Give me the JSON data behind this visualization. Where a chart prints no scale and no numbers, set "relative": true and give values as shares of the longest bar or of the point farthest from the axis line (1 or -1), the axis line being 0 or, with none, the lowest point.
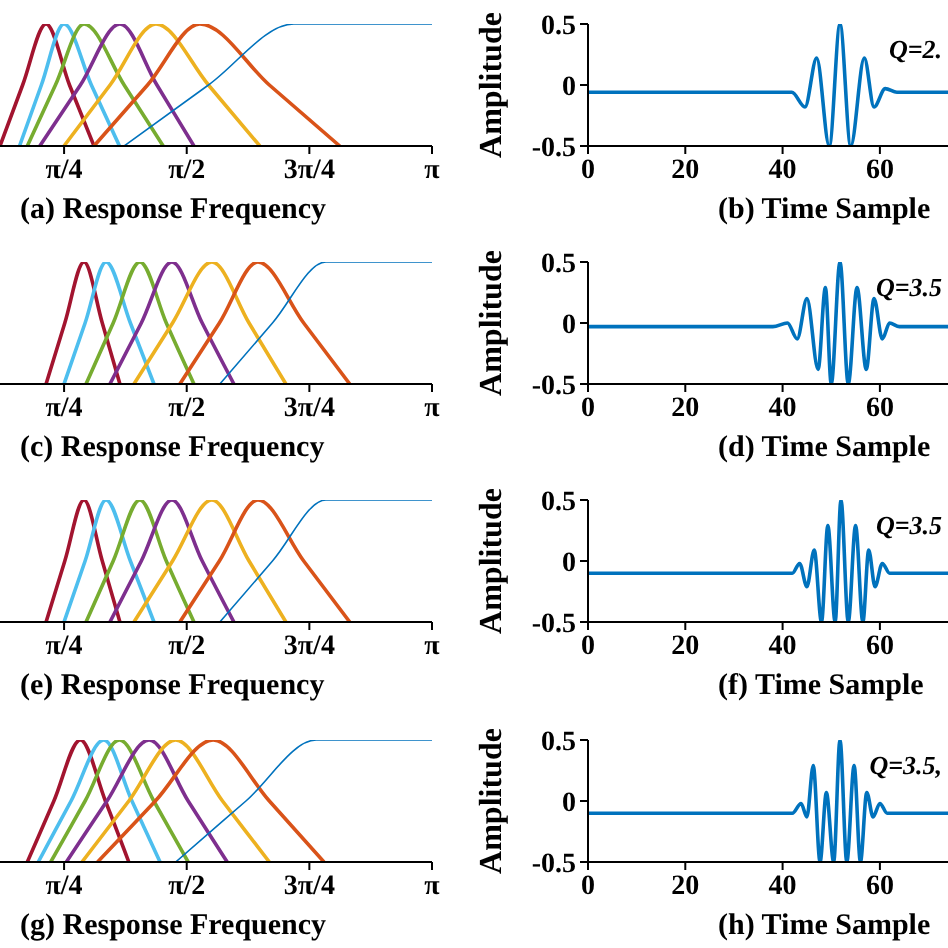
{
  "chart_data": [
    {
      "type": "line",
      "relative": true,
      "xlabel": "(a) Response Frequency",
      "xlim": [
        0.375,
        3.1416
      ],
      "xticks": [
        {
          "value": 0.7854,
          "label": "π/4"
        },
        {
          "value": 1.5708,
          "label": "π/2"
        },
        {
          "value": 2.3562,
          "label": "3π/4"
        },
        {
          "value": 3.1416,
          "label": "π"
        }
      ],
      "series": [
        {
          "color": "#a2142f",
          "x": [
            0.375,
            0.52,
            0.67,
            0.82,
            0.977
          ],
          "values": [
            0,
            0.5,
            1,
            0.5,
            0
          ]
        },
        {
          "color": "#4dbeee",
          "x": [
            0.5,
            0.64,
            0.785,
            0.96,
            1.14
          ],
          "values": [
            0,
            0.5,
            1,
            0.5,
            0
          ]
        },
        {
          "color": "#77ac30",
          "x": [
            0.55,
            0.73,
            0.913,
            1.17,
            1.42
          ],
          "values": [
            0,
            0.5,
            1,
            0.5,
            0
          ]
        },
        {
          "color": "#7e2f8e",
          "x": [
            0.63,
            0.89,
            1.143,
            1.38,
            1.617
          ],
          "values": [
            0,
            0.5,
            1,
            0.5,
            0
          ]
        },
        {
          "color": "#edb120",
          "x": [
            0.785,
            1.08,
            1.374,
            1.71,
            2.039
          ],
          "values": [
            0,
            0.5,
            1,
            0.5,
            0
          ]
        },
        {
          "color": "#d95319",
          "x": [
            0.977,
            1.32,
            1.655,
            2.1,
            2.551
          ],
          "values": [
            0,
            0.5,
            1,
            0.5,
            0
          ]
        },
        {
          "color": "#0072bd",
          "x": [
            1.17,
            1.71,
            2.257,
            3.1416
          ],
          "values": [
            0,
            0.5,
            1,
            1
          ]
        }
      ]
    },
    {
      "type": "line",
      "xlabel": "(b) Time Sample",
      "ylabel": "Amplitude",
      "xlim": [
        0,
        74
      ],
      "xticks": [
        0,
        20,
        40,
        60
      ],
      "ylim": [
        -0.5,
        0.5
      ],
      "yticks": [
        -0.5,
        0,
        0.5
      ],
      "annotations": [
        "Q=2."
      ],
      "series": [
        {
          "color": "#0072bd",
          "x": [
            0,
            41.9,
            44.6,
            47,
            49.6,
            51.8,
            54,
            56.8,
            58.8,
            61.1,
            63.5,
            74
          ],
          "values": [
            -0.06,
            -0.06,
            -0.18,
            0.22,
            -0.5,
            0.5,
            -0.5,
            0.22,
            -0.18,
            -0.03,
            -0.06,
            -0.06
          ]
        }
      ]
    },
    {
      "type": "line",
      "relative": true,
      "xlabel": "(c) Response Frequency",
      "xlim": [
        0.375,
        3.1416
      ],
      "xticks": [
        {
          "value": 0.7854,
          "label": "π/4"
        },
        {
          "value": 1.5708,
          "label": "π/2"
        },
        {
          "value": 2.3562,
          "label": "3π/4"
        },
        {
          "value": 3.1416,
          "label": "π"
        }
      ],
      "series": [
        {
          "color": "#a2142f",
          "x": [
            0.67,
            0.79,
            0.913,
            1.03,
            1.143
          ],
          "values": [
            0,
            0.5,
            1,
            0.5,
            0
          ]
        },
        {
          "color": "#4dbeee",
          "x": [
            0.785,
            0.92,
            1.054,
            1.21,
            1.361
          ],
          "values": [
            0,
            0.5,
            1,
            0.5,
            0
          ]
        },
        {
          "color": "#77ac30",
          "x": [
            0.926,
            1.1,
            1.271,
            1.44,
            1.617
          ],
          "values": [
            0,
            0.5,
            1,
            0.5,
            0
          ]
        },
        {
          "color": "#7e2f8e",
          "x": [
            1.079,
            1.28,
            1.476,
            1.67,
            1.873
          ],
          "values": [
            0,
            0.5,
            1,
            0.5,
            0
          ]
        },
        {
          "color": "#edb120",
          "x": [
            1.233,
            1.48,
            1.732,
            1.97,
            2.206
          ],
          "values": [
            0,
            0.5,
            1,
            0.5,
            0
          ]
        },
        {
          "color": "#d95319",
          "x": [
            1.527,
            1.78,
            2.027,
            2.32,
            2.615
          ],
          "values": [
            0,
            0.5,
            1,
            0.5,
            0
          ]
        },
        {
          "color": "#0072bd",
          "x": [
            1.783,
            2.12,
            2.462,
            3.1416
          ],
          "values": [
            0,
            0.5,
            1,
            1
          ]
        }
      ]
    },
    {
      "type": "line",
      "xlabel": "(d) Time Sample",
      "ylabel": "Amplitude",
      "xlim": [
        0,
        74
      ],
      "xticks": [
        0,
        20,
        40,
        60
      ],
      "ylim": [
        -0.5,
        0.5
      ],
      "yticks": [
        -0.5,
        0,
        0.5
      ],
      "annotations": [
        "Q=3.5"
      ],
      "series": [
        {
          "color": "#0072bd",
          "x": [
            0,
            38,
            41,
            43,
            45,
            47.3,
            48.8,
            50,
            51.8,
            53.5,
            55.3,
            57.2,
            58.8,
            60.5,
            62,
            64,
            74
          ],
          "values": [
            -0.03,
            -0.03,
            0,
            -0.13,
            0.2,
            -0.38,
            0.29,
            -0.5,
            0.5,
            -0.5,
            0.29,
            -0.38,
            0.2,
            -0.13,
            0,
            -0.03,
            -0.03
          ]
        }
      ]
    },
    {
      "type": "line",
      "relative": true,
      "xlabel": "(e) Response Frequency",
      "xlim": [
        0.375,
        3.1416
      ],
      "xticks": [
        {
          "value": 0.7854,
          "label": "π/4"
        },
        {
          "value": 1.5708,
          "label": "π/2"
        },
        {
          "value": 2.3562,
          "label": "3π/4"
        },
        {
          "value": 3.1416,
          "label": "π"
        }
      ],
      "series": [
        {
          "color": "#a2142f",
          "x": [
            0.67,
            0.79,
            0.913,
            1.03,
            1.143
          ],
          "values": [
            0,
            0.5,
            1,
            0.5,
            0
          ]
        },
        {
          "color": "#4dbeee",
          "x": [
            0.785,
            0.92,
            1.054,
            1.21,
            1.361
          ],
          "values": [
            0,
            0.5,
            1,
            0.5,
            0
          ]
        },
        {
          "color": "#77ac30",
          "x": [
            0.926,
            1.1,
            1.271,
            1.44,
            1.617
          ],
          "values": [
            0,
            0.5,
            1,
            0.5,
            0
          ]
        },
        {
          "color": "#7e2f8e",
          "x": [
            1.079,
            1.28,
            1.476,
            1.67,
            1.873
          ],
          "values": [
            0,
            0.5,
            1,
            0.5,
            0
          ]
        },
        {
          "color": "#edb120",
          "x": [
            1.233,
            1.48,
            1.732,
            1.97,
            2.206
          ],
          "values": [
            0,
            0.5,
            1,
            0.5,
            0
          ]
        },
        {
          "color": "#d95319",
          "x": [
            1.527,
            1.78,
            2.027,
            2.32,
            2.615
          ],
          "values": [
            0,
            0.5,
            1,
            0.5,
            0
          ]
        },
        {
          "color": "#0072bd",
          "x": [
            1.783,
            2.12,
            2.462,
            3.1416
          ],
          "values": [
            0,
            0.5,
            1,
            1
          ]
        }
      ]
    },
    {
      "type": "line",
      "xlabel": "(f) Time Sample",
      "ylabel": "Amplitude",
      "xlim": [
        0,
        74
      ],
      "xticks": [
        0,
        20,
        40,
        60
      ],
      "ylim": [
        -0.5,
        0.5
      ],
      "yticks": [
        -0.5,
        0,
        0.5
      ],
      "annotations": [
        "Q=3.5"
      ],
      "series": [
        {
          "color": "#0072bd",
          "x": [
            0,
            42,
            43.5,
            45,
            46.5,
            48,
            49.3,
            50.8,
            52,
            53.5,
            55,
            56.5,
            57.7,
            59,
            60.5,
            62,
            74
          ],
          "values": [
            -0.1,
            -0.1,
            -0.02,
            -0.21,
            0.09,
            -0.5,
            0.29,
            -0.5,
            0.5,
            -0.5,
            0.29,
            -0.5,
            0.09,
            -0.21,
            -0.02,
            -0.1,
            -0.1
          ]
        }
      ]
    },
    {
      "type": "line",
      "relative": true,
      "xlabel": "(g) Response Frequency",
      "xlim": [
        0.375,
        3.1416
      ],
      "xticks": [
        {
          "value": 0.7854,
          "label": "π/4"
        },
        {
          "value": 1.5708,
          "label": "π/2"
        },
        {
          "value": 2.3562,
          "label": "3π/4"
        },
        {
          "value": 3.1416,
          "label": "π"
        }
      ],
      "series": [
        {
          "color": "#a2142f",
          "x": [
            0.55,
            0.72,
            0.89,
            1.05,
            1.2
          ],
          "values": [
            0,
            0.5,
            1,
            0.5,
            0
          ]
        },
        {
          "color": "#4dbeee",
          "x": [
            0.62,
            0.83,
            1.04,
            1.22,
            1.4
          ],
          "values": [
            0,
            0.5,
            1,
            0.5,
            0
          ]
        },
        {
          "color": "#77ac30",
          "x": [
            0.7,
            0.92,
            1.14,
            1.36,
            1.58
          ],
          "values": [
            0,
            0.5,
            1,
            0.5,
            0
          ]
        },
        {
          "color": "#7e2f8e",
          "x": [
            0.8,
            1.06,
            1.33,
            1.58,
            1.83
          ],
          "values": [
            0,
            0.5,
            1,
            0.5,
            0
          ]
        },
        {
          "color": "#edb120",
          "x": [
            0.9,
            1.2,
            1.5,
            1.8,
            2.1
          ],
          "values": [
            0,
            0.5,
            1,
            0.5,
            0
          ]
        },
        {
          "color": "#d95319",
          "x": [
            1.0,
            1.37,
            1.74,
            2.1,
            2.45
          ],
          "values": [
            0,
            0.5,
            1,
            0.5,
            0
          ]
        },
        {
          "color": "#0072bd",
          "x": [
            1.5,
            1.95,
            2.4,
            3.1416
          ],
          "values": [
            0,
            0.5,
            1,
            1
          ]
        }
      ]
    },
    {
      "type": "line",
      "xlabel": "(h) Time Sample",
      "ylabel": "Amplitude",
      "xlim": [
        0,
        74
      ],
      "xticks": [
        0,
        20,
        40,
        60
      ],
      "ylim": [
        -0.5,
        0.5
      ],
      "yticks": [
        -0.5,
        0,
        0.5
      ],
      "annotations": [
        "Q=3.5,"
      ],
      "series": [
        {
          "color": "#0072bd",
          "x": [
            0,
            42,
            43.8,
            45,
            46.3,
            47.7,
            49,
            50.5,
            51.8,
            53.2,
            54.7,
            56,
            57.3,
            58.6,
            60,
            61.5,
            74
          ],
          "values": [
            -0.1,
            -0.1,
            -0.02,
            -0.13,
            0.29,
            -0.5,
            0.07,
            -0.5,
            0.5,
            -0.5,
            0.29,
            -0.5,
            0.07,
            -0.13,
            -0.02,
            -0.1,
            -0.1
          ]
        }
      ]
    }
  ]
}
